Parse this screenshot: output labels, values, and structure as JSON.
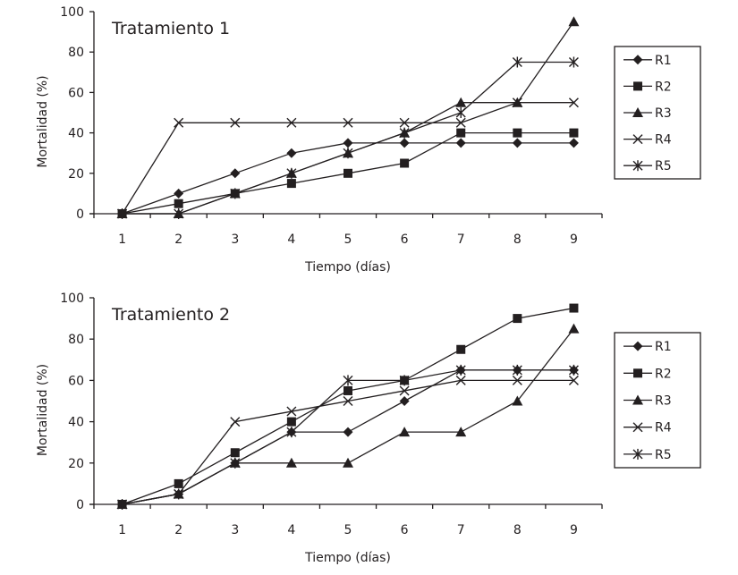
{
  "chart_data": [
    {
      "type": "line",
      "title": "Tratamiento 1",
      "xlabel": "Tiempo (días)",
      "ylabel": "Mortalidad (%)",
      "categories": [
        "1",
        "2",
        "3",
        "4",
        "5",
        "6",
        "7",
        "8",
        "9"
      ],
      "ylim": [
        0,
        100
      ],
      "yticks": [
        "0",
        "20",
        "40",
        "60",
        "80",
        "100"
      ],
      "grid": false,
      "legend_position": "right",
      "series": [
        {
          "name": "R1",
          "marker": "diamond",
          "values": [
            0,
            10,
            20,
            30,
            35,
            35,
            35,
            35,
            35
          ]
        },
        {
          "name": "R2",
          "marker": "square",
          "values": [
            0,
            5,
            10,
            15,
            20,
            25,
            40,
            40,
            40
          ]
        },
        {
          "name": "R3",
          "marker": "triangle",
          "values": [
            0,
            0,
            10,
            20,
            30,
            40,
            55,
            55,
            95
          ]
        },
        {
          "name": "R4",
          "marker": "x",
          "values": [
            0,
            45,
            45,
            45,
            45,
            45,
            45,
            55,
            55
          ]
        },
        {
          "name": "R5",
          "marker": "asterisk",
          "values": [
            0,
            0,
            10,
            20,
            30,
            40,
            50,
            75,
            75
          ]
        }
      ]
    },
    {
      "type": "line",
      "title": "Tratamiento 2",
      "xlabel": "Tiempo (días)",
      "ylabel": "Mortalidad (%)",
      "categories": [
        "1",
        "2",
        "3",
        "4",
        "5",
        "6",
        "7",
        "8",
        "9"
      ],
      "ylim": [
        0,
        100
      ],
      "yticks": [
        "0",
        "20",
        "40",
        "60",
        "80",
        "100"
      ],
      "grid": false,
      "legend_position": "right",
      "series": [
        {
          "name": "R1",
          "marker": "diamond",
          "values": [
            0,
            5,
            20,
            35,
            35,
            50,
            65,
            65,
            65
          ]
        },
        {
          "name": "R2",
          "marker": "square",
          "values": [
            0,
            10,
            25,
            40,
            55,
            60,
            75,
            90,
            95
          ]
        },
        {
          "name": "R3",
          "marker": "triangle",
          "values": [
            0,
            5,
            20,
            20,
            20,
            35,
            35,
            50,
            85
          ]
        },
        {
          "name": "R4",
          "marker": "x",
          "values": [
            0,
            5,
            40,
            45,
            50,
            55,
            60,
            60,
            60
          ]
        },
        {
          "name": "R5",
          "marker": "asterisk",
          "values": [
            0,
            5,
            20,
            35,
            60,
            60,
            65,
            65,
            65
          ]
        }
      ]
    }
  ],
  "colors": {
    "ink": "#231f20",
    "background": "#ffffff"
  }
}
